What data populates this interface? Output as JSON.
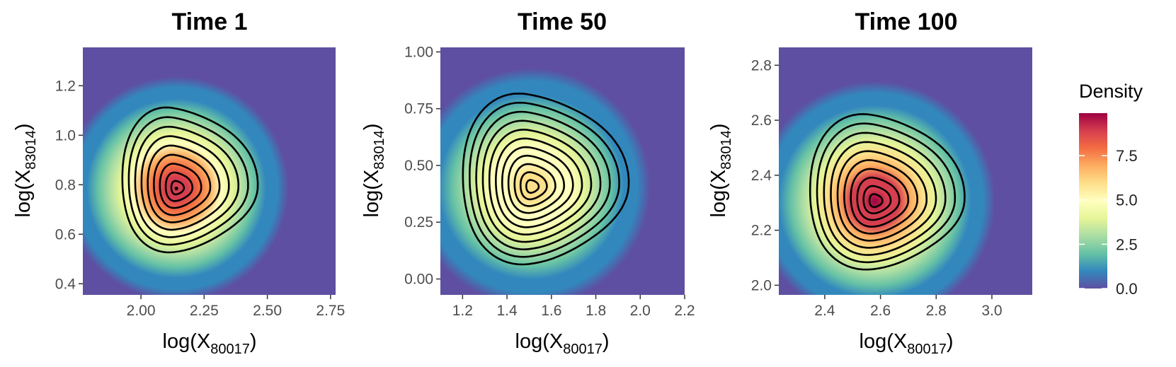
{
  "chart_data": [
    {
      "type": "heatmap",
      "title": "Time 1",
      "xlabel_base": "log(X",
      "xlabel_sub": "80017",
      "xlabel_end": ")",
      "ylabel_base": "log(X",
      "ylabel_sub": "83014",
      "ylabel_end": ")",
      "xlim": [
        1.77,
        2.77
      ],
      "ylim": [
        0.355,
        1.355
      ],
      "x_ticks": [
        2.0,
        2.25,
        2.5,
        2.75
      ],
      "x_tick_labels": [
        "2.00",
        "2.25",
        "2.50",
        "2.75"
      ],
      "y_ticks": [
        0.4,
        0.6,
        0.8,
        1.0,
        1.2
      ],
      "y_tick_labels": [
        "0.4",
        "0.6",
        "0.8",
        "1.0",
        "1.2"
      ],
      "density_peak": [
        2.14,
        0.785
      ],
      "contour_extent": [
        1.915,
        2.445,
        0.535,
        1.115
      ],
      "peak_density": 9.0,
      "contour_levels": 9
    },
    {
      "type": "heatmap",
      "title": "Time 50",
      "xlabel_base": "log(X",
      "xlabel_sub": "80017",
      "xlabel_end": ")",
      "ylabel_base": "log(X",
      "ylabel_sub": "83014",
      "ylabel_end": ")",
      "xlim": [
        1.1,
        2.2
      ],
      "ylim": [
        -0.07,
        1.02
      ],
      "x_ticks": [
        1.2,
        1.4,
        1.6,
        1.8,
        2.0,
        2.2
      ],
      "x_tick_labels": [
        "1.2",
        "1.4",
        "1.6",
        "1.8",
        "2.0",
        "2.2"
      ],
      "y_ticks": [
        0.0,
        0.25,
        0.5,
        0.75,
        1.0
      ],
      "y_tick_labels": [
        "0.00",
        "0.25",
        "0.50",
        "0.75",
        "1.00"
      ],
      "density_peak": [
        1.51,
        0.405
      ],
      "contour_extent": [
        1.185,
        1.925,
        0.075,
        0.82
      ],
      "peak_density": 6.0,
      "contour_levels": 11
    },
    {
      "type": "heatmap",
      "title": "Time 100",
      "xlabel_base": "log(X",
      "xlabel_sub": "80017",
      "xlabel_end": ")",
      "ylabel_base": "log(X",
      "ylabel_sub": "83014",
      "ylabel_end": ")",
      "xlim": [
        2.235,
        3.145
      ],
      "ylim": [
        1.965,
        2.865
      ],
      "x_ticks": [
        2.4,
        2.6,
        2.8,
        3.0
      ],
      "x_tick_labels": [
        "2.4",
        "2.6",
        "2.8",
        "3.0"
      ],
      "y_ticks": [
        2.0,
        2.2,
        2.4,
        2.6,
        2.8
      ],
      "y_tick_labels": [
        "2.0",
        "2.2",
        "2.4",
        "2.6",
        "2.8"
      ],
      "density_peak": [
        2.58,
        2.305
      ],
      "contour_extent": [
        2.335,
        2.885,
        2.065,
        2.625
      ],
      "peak_density": 9.6,
      "contour_levels": 10
    }
  ],
  "legend": {
    "title": "Density",
    "range": [
      0.0,
      9.9
    ],
    "ticks": [
      0.0,
      2.5,
      5.0,
      7.5
    ],
    "tick_labels": [
      "0.0",
      "2.5",
      "5.0",
      "7.5"
    ],
    "colormap": [
      "#5E4FA2",
      "#3288BD",
      "#66C2A5",
      "#ABDDA4",
      "#E6F598",
      "#FFFFBF",
      "#FEE08B",
      "#FDAE61",
      "#F46D43",
      "#D53E4F",
      "#9E0142"
    ]
  }
}
